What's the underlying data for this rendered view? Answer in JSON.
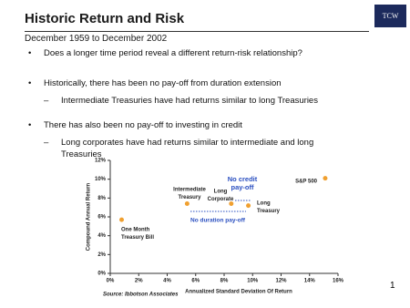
{
  "header": {
    "title": "Historic Return and Risk",
    "subtitle": "December 1959 to December 2002",
    "logo": "TCW"
  },
  "bullets": [
    {
      "text": "Does a longer time period reveal a different return-risk relationship?",
      "sub": []
    },
    {
      "text": "Historically, there has been no pay-off from duration extension",
      "sub": [
        "Intermediate Treasuries have had returns similar to long Treasuries"
      ]
    },
    {
      "text": "There has also been no pay-off to investing in credit",
      "sub": [
        "Long corporates have had returns similar to intermediate and long Treasuries"
      ]
    }
  ],
  "page_number": "1",
  "chart_data": {
    "type": "scatter",
    "x_label": "Annualized Standard Deviation Of Return",
    "y_label": "Compound Annual Return",
    "source": "Source: Ibbotson Associates",
    "color": "#f0a030",
    "x": [
      0.8,
      5.4,
      8.5,
      9.7,
      15.1
    ],
    "values": [
      5.7,
      7.4,
      7.4,
      7.2,
      10.1
    ],
    "labels": [
      [
        "One Month",
        "Treasury Bill"
      ],
      [
        "Intermediate",
        "Treasury"
      ],
      [
        "Long",
        "Corporate"
      ],
      [
        "Long",
        "Treasury"
      ],
      [
        "S&P 500"
      ]
    ],
    "annotations": [
      [
        "No credit",
        "pay-off"
      ],
      [
        "No duration pay-off"
      ]
    ],
    "xlim": [
      0,
      16
    ],
    "ylim": [
      0,
      12
    ],
    "xticks": [
      {
        "value": 0,
        "label": "0%"
      },
      {
        "value": 2,
        "label": "2%"
      },
      {
        "value": 4,
        "label": "4%"
      },
      {
        "value": 6,
        "label": "6%"
      },
      {
        "value": 8,
        "label": "8%"
      },
      {
        "value": 10,
        "label": "10%"
      },
      {
        "value": 12,
        "label": "12%"
      },
      {
        "value": 14,
        "label": "14%"
      },
      {
        "value": 16,
        "label": "16%"
      }
    ],
    "yticks": [
      {
        "value": 0,
        "label": "0%"
      },
      {
        "value": 2,
        "label": "2%"
      },
      {
        "value": 4,
        "label": "4%"
      },
      {
        "value": 6,
        "label": "6%"
      },
      {
        "value": 8,
        "label": "8%"
      },
      {
        "value": 10,
        "label": "10%"
      },
      {
        "value": 12,
        "label": "12%"
      }
    ]
  }
}
